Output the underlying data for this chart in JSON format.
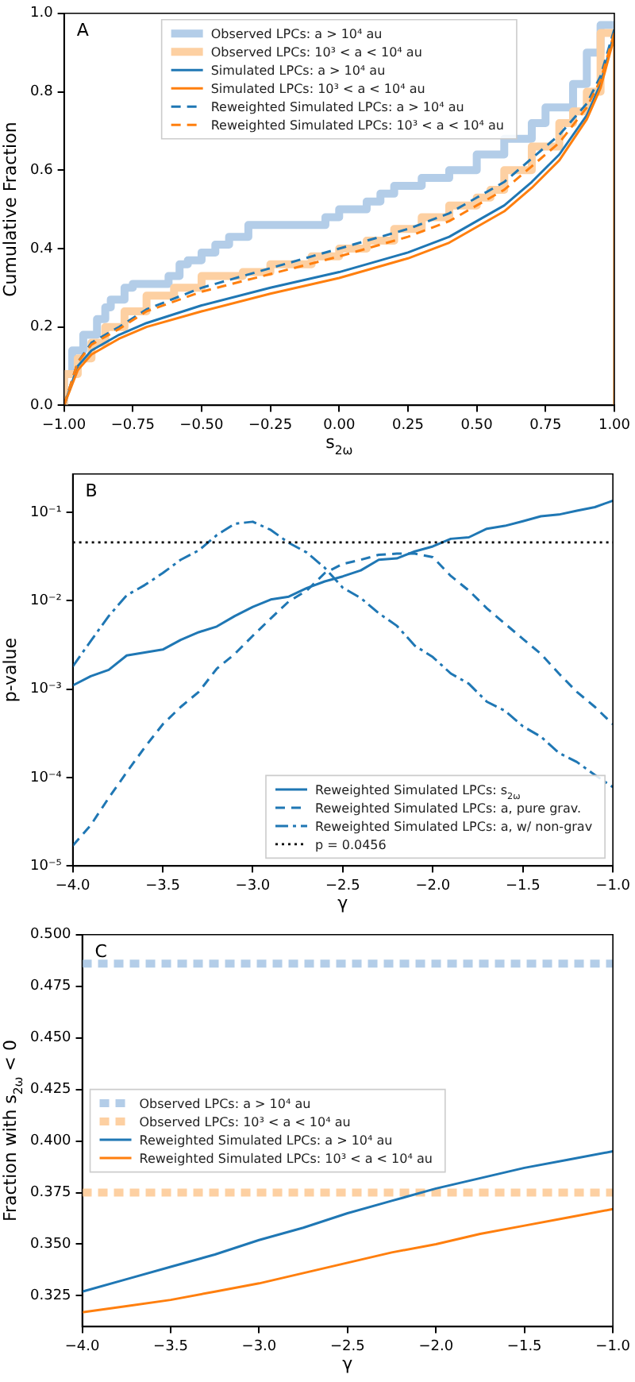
{
  "chart_data": [
    {
      "type": "line",
      "xlabel": "s$_{2ω}$",
      "ylabel": "Cumulative Fraction",
      "annotations": [
        "A"
      ],
      "legend": "top",
      "xlim": [
        -1,
        1
      ],
      "ylim": [
        0,
        1
      ],
      "xticks": [
        {
          "value": -1,
          "label": "−1.00"
        },
        {
          "value": -0.75,
          "label": "−0.75"
        },
        {
          "value": -0.5,
          "label": "−0.50"
        },
        {
          "value": -0.25,
          "label": "−0.25"
        },
        {
          "value": 0,
          "label": "0.00"
        },
        {
          "value": 0.25,
          "label": "0.25"
        },
        {
          "value": 0.5,
          "label": "0.50"
        },
        {
          "value": 0.75,
          "label": "0.75"
        },
        {
          "value": 1,
          "label": "1.00"
        }
      ],
      "yticks": [
        {
          "value": 0,
          "label": "0.0"
        },
        {
          "value": 0.2,
          "label": "0.2"
        },
        {
          "value": 0.4,
          "label": "0.4"
        },
        {
          "value": 0.6,
          "label": "0.6"
        },
        {
          "value": 0.8,
          "label": "0.8"
        },
        {
          "value": 1,
          "label": "1.0"
        }
      ],
      "series": [
        {
          "name": "Observed LPCs: a > 10⁴ au",
          "type": "step",
          "color": "#b3cde8",
          "line_style": "solid",
          "x": [
            -1,
            -0.97,
            -0.93,
            -0.88,
            -0.85,
            -0.83,
            -0.78,
            -0.75,
            -0.62,
            -0.58,
            -0.55,
            -0.5,
            -0.45,
            -0.4,
            -0.33,
            -0.25,
            -0.05,
            0,
            0.1,
            0.15,
            0.2,
            0.3,
            0.4,
            0.5,
            0.6,
            0.7,
            0.75,
            0.85,
            0.9,
            0.95,
            1
          ],
          "values": [
            0,
            0.08,
            0.14,
            0.18,
            0.22,
            0.25,
            0.27,
            0.3,
            0.31,
            0.33,
            0.36,
            0.37,
            0.39,
            0.41,
            0.43,
            0.46,
            0.46,
            0.48,
            0.5,
            0.52,
            0.54,
            0.56,
            0.58,
            0.6,
            0.64,
            0.68,
            0.72,
            0.76,
            0.82,
            0.9,
            0.97
          ]
        },
        {
          "name": "Observed LPCs: 10³ < a < 10⁴ au",
          "type": "step",
          "color": "#fdd0a2",
          "line_style": "solid",
          "x": [
            -1,
            -0.95,
            -0.9,
            -0.85,
            -0.78,
            -0.7,
            -0.6,
            -0.5,
            -0.35,
            -0.25,
            -0.1,
            0,
            0.1,
            0.2,
            0.3,
            0.4,
            0.5,
            0.55,
            0.6,
            0.7,
            0.8,
            0.85,
            0.9,
            0.95,
            1
          ],
          "values": [
            0,
            0.08,
            0.12,
            0.16,
            0.2,
            0.24,
            0.28,
            0.3,
            0.33,
            0.34,
            0.36,
            0.38,
            0.4,
            0.42,
            0.45,
            0.48,
            0.51,
            0.53,
            0.55,
            0.6,
            0.66,
            0.72,
            0.75,
            0.8,
            0.95
          ]
        },
        {
          "name": "Simulated LPCs: a > 10⁴ au",
          "color": "#1f77b4",
          "line_style": "solid",
          "x": [
            -1,
            -0.95,
            -0.9,
            -0.8,
            -0.7,
            -0.5,
            -0.25,
            0,
            0.25,
            0.4,
            0.5,
            0.6,
            0.7,
            0.8,
            0.9,
            0.95,
            1
          ],
          "values": [
            0,
            0.1,
            0.14,
            0.18,
            0.21,
            0.255,
            0.3,
            0.34,
            0.39,
            0.43,
            0.47,
            0.51,
            0.57,
            0.64,
            0.74,
            0.82,
            0.95
          ]
        },
        {
          "name": "Simulated LPCs: 10³ < a < 10⁴ au",
          "color": "#ff7f0e",
          "line_style": "solid",
          "x": [
            -1,
            -0.95,
            -0.9,
            -0.8,
            -0.7,
            -0.5,
            -0.25,
            0,
            0.25,
            0.4,
            0.5,
            0.6,
            0.7,
            0.8,
            0.9,
            0.95,
            1,
            1
          ],
          "values": [
            0,
            0.09,
            0.13,
            0.17,
            0.2,
            0.24,
            0.285,
            0.325,
            0.375,
            0.415,
            0.455,
            0.495,
            0.555,
            0.625,
            0.73,
            0.81,
            0.94,
            0
          ]
        },
        {
          "name": "Reweighted Simulated LPCs: a > 10⁴ au",
          "color": "#1f77b4",
          "line_style": "dashed",
          "x": [
            -1,
            -0.95,
            -0.9,
            -0.8,
            -0.7,
            -0.5,
            -0.25,
            0,
            0.25,
            0.4,
            0.5,
            0.6,
            0.7,
            0.8,
            0.9,
            0.95,
            1
          ],
          "values": [
            0,
            0.11,
            0.16,
            0.2,
            0.245,
            0.3,
            0.35,
            0.4,
            0.45,
            0.49,
            0.53,
            0.57,
            0.63,
            0.69,
            0.77,
            0.84,
            0.96
          ]
        },
        {
          "name": "Reweighted Simulated LPCs: 10³ < a < 10⁴ au",
          "color": "#ff7f0e",
          "line_style": "dashed",
          "x": [
            -1,
            -0.95,
            -0.9,
            -0.8,
            -0.7,
            -0.5,
            -0.25,
            0,
            0.25,
            0.4,
            0.5,
            0.6,
            0.7,
            0.8,
            0.9,
            0.95,
            1
          ],
          "values": [
            0,
            0.11,
            0.155,
            0.195,
            0.24,
            0.29,
            0.335,
            0.38,
            0.43,
            0.47,
            0.51,
            0.55,
            0.61,
            0.67,
            0.76,
            0.83,
            0.95
          ]
        }
      ]
    },
    {
      "type": "line",
      "xlabel": "γ",
      "ylabel": "p-value",
      "annotations": [
        "B"
      ],
      "legend": "bottom right",
      "log": "y",
      "xlim": [
        -4,
        -1
      ],
      "ylim": [
        1e-05,
        0.27
      ],
      "xticks": [
        {
          "value": -4,
          "label": "−4.0"
        },
        {
          "value": -3.5,
          "label": "−3.5"
        },
        {
          "value": -3,
          "label": "−3.0"
        },
        {
          "value": -2.5,
          "label": "−2.5"
        },
        {
          "value": -2,
          "label": "−2.0"
        },
        {
          "value": -1.5,
          "label": "−1.5"
        },
        {
          "value": -1,
          "label": "−1.0"
        }
      ],
      "yticks": [
        {
          "value": 1e-05,
          "label": "10⁻⁵"
        },
        {
          "value": 0.0001,
          "label": "10⁻⁴"
        },
        {
          "value": 0.001,
          "label": "10⁻³"
        },
        {
          "value": 0.01,
          "label": "10⁻²"
        },
        {
          "value": 0.1,
          "label": "10⁻¹"
        }
      ],
      "x": [
        -4,
        -3.9,
        -3.8,
        -3.7,
        -3.6,
        -3.5,
        -3.4,
        -3.3,
        -3.2,
        -3.1,
        -3,
        -2.9,
        -2.8,
        -2.7,
        -2.6,
        -2.5,
        -2.4,
        -2.3,
        -2.2,
        -2.1,
        -2,
        -1.9,
        -1.8,
        -1.7,
        -1.6,
        -1.5,
        -1.4,
        -1.3,
        -1.2,
        -1.1,
        -1
      ],
      "series": [
        {
          "name": "Reweighted Simulated LPCs: s$_{2ω}$",
          "color": "#1f77b4",
          "line_style": "solid",
          "values": [
            0.0011,
            0.0014,
            0.00165,
            0.0024,
            0.0026,
            0.0028,
            0.0036,
            0.0044,
            0.0051,
            0.0067,
            0.0085,
            0.0103,
            0.0111,
            0.0139,
            0.0165,
            0.0188,
            0.022,
            0.029,
            0.03,
            0.036,
            0.041,
            0.05,
            0.052,
            0.065,
            0.07,
            0.079,
            0.09,
            0.094,
            0.104,
            0.114,
            0.135
          ]
        },
        {
          "name": "Reweighted Simulated LPCs: a, pure grav.",
          "color": "#1f77b4",
          "line_style": "dashed",
          "values": [
            1.7e-05,
            2.9e-05,
            5.9e-05,
            0.000115,
            0.00022,
            0.0004,
            0.00063,
            0.00093,
            0.0017,
            0.0025,
            0.004,
            0.0063,
            0.0098,
            0.013,
            0.0205,
            0.026,
            0.029,
            0.033,
            0.034,
            0.034,
            0.031,
            0.019,
            0.013,
            0.0082,
            0.0055,
            0.0037,
            0.0025,
            0.0015,
            0.00093,
            0.00063,
            0.0004
          ]
        },
        {
          "name": "Reweighted Simulated LPCs: a, w/ non-grav",
          "color": "#1f77b4",
          "line_style": "dashdot",
          "values": [
            0.0018,
            0.0035,
            0.0067,
            0.0115,
            0.015,
            0.0205,
            0.029,
            0.037,
            0.055,
            0.074,
            0.078,
            0.063,
            0.045,
            0.035,
            0.0235,
            0.014,
            0.0107,
            0.0072,
            0.0052,
            0.0031,
            0.0023,
            0.0015,
            0.00115,
            0.00072,
            0.00057,
            0.00038,
            0.00029,
            0.00019,
            0.00015,
            0.000107,
            7.8e-05
          ]
        }
      ],
      "ref_lines": [
        {
          "axis": "y",
          "value": 0.0456,
          "label": "p = 0.0456",
          "color": "#000000",
          "line_style": "dotted"
        }
      ]
    },
    {
      "type": "line",
      "xlabel": "γ",
      "ylabel": "Fraction with s$_{2ω}$ < 0",
      "annotations": [
        "C"
      ],
      "legend": "left",
      "xlim": [
        -4,
        -1
      ],
      "ylim": [
        0.31,
        0.5
      ],
      "xticks": [
        {
          "value": -4,
          "label": "−4.0"
        },
        {
          "value": -3.5,
          "label": "−3.5"
        },
        {
          "value": -3,
          "label": "−3.0"
        },
        {
          "value": -2.5,
          "label": "−2.5"
        },
        {
          "value": -2,
          "label": "−2.0"
        },
        {
          "value": -1.5,
          "label": "−1.5"
        },
        {
          "value": -1,
          "label": "−1.0"
        }
      ],
      "yticks": [
        {
          "value": 0.325,
          "label": "0.325"
        },
        {
          "value": 0.35,
          "label": "0.350"
        },
        {
          "value": 0.375,
          "label": "0.375"
        },
        {
          "value": 0.4,
          "label": "0.400"
        },
        {
          "value": 0.425,
          "label": "0.425"
        },
        {
          "value": 0.45,
          "label": "0.450"
        },
        {
          "value": 0.475,
          "label": "0.475"
        },
        {
          "value": 0.5,
          "label": "0.500"
        }
      ],
      "series": [
        {
          "name": "Observed LPCs: a > 10⁴ au",
          "color": "#b3cde8",
          "line_style": "dashed",
          "x": [
            -4,
            -1
          ],
          "values": [
            0.486,
            0.486
          ]
        },
        {
          "name": "Observed LPCs: 10³ < a < 10⁴ au",
          "color": "#fdd0a2",
          "line_style": "dashed",
          "x": [
            -4,
            -1
          ],
          "values": [
            0.375,
            0.375
          ]
        },
        {
          "name": "Reweighted Simulated LPCs: a > 10⁴ au",
          "color": "#1f77b4",
          "line_style": "solid",
          "x": [
            -4,
            -3.75,
            -3.5,
            -3.25,
            -3,
            -2.75,
            -2.5,
            -2.25,
            -2,
            -1.75,
            -1.5,
            -1.25,
            -1
          ],
          "values": [
            0.327,
            0.333,
            0.339,
            0.345,
            0.352,
            0.358,
            0.365,
            0.371,
            0.377,
            0.382,
            0.387,
            0.391,
            0.395
          ]
        },
        {
          "name": "Reweighted Simulated LPCs: 10³ < a < 10⁴ au",
          "color": "#ff7f0e",
          "line_style": "solid",
          "x": [
            -4,
            -3.75,
            -3.5,
            -3.25,
            -3,
            -2.75,
            -2.5,
            -2.25,
            -2,
            -1.75,
            -1.5,
            -1.25,
            -1
          ],
          "values": [
            0.317,
            0.32,
            0.323,
            0.327,
            0.331,
            0.336,
            0.341,
            0.346,
            0.35,
            0.355,
            0.359,
            0.363,
            0.367
          ]
        }
      ]
    }
  ]
}
